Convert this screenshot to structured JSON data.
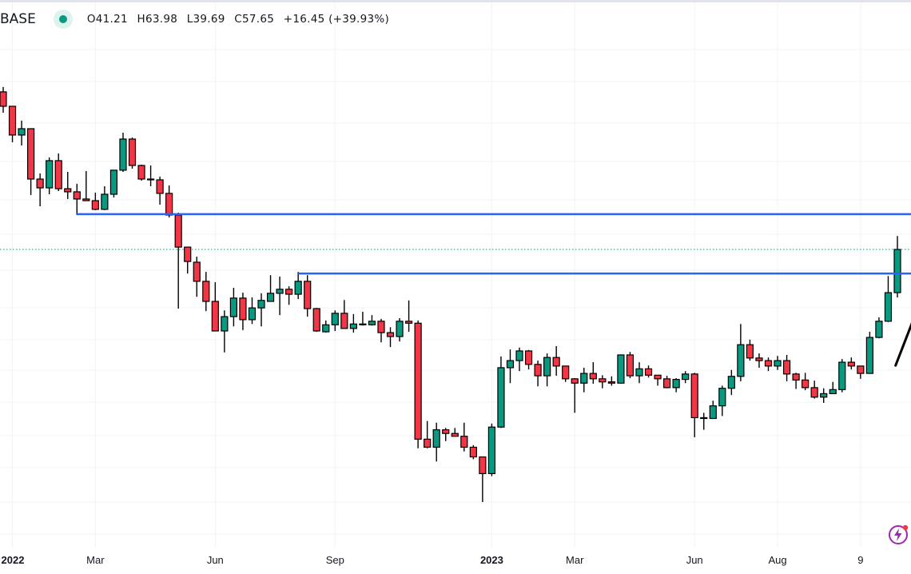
{
  "header": {
    "symbol": "BASE",
    "status_color": "#089981",
    "ohlc": {
      "open": "O41.21",
      "high": "H63.98",
      "low": "L39.69",
      "close": "C57.65",
      "change": "+16.45 (+39.93%)"
    }
  },
  "chart_data": {
    "type": "candlestick",
    "interval": "weekly",
    "scale": "log",
    "grid": true,
    "colors": {
      "up": "#089981",
      "down": "#F23645",
      "wick": "#000000",
      "horizontal_lines": "#2962FF",
      "last_price_line": "#089981"
    },
    "candles_ohlc": [
      [
        196.1,
        203.6,
        166.8,
        175.3
      ],
      [
        175.3,
        175.3,
        132.6,
        140.2
      ],
      [
        140.2,
        156.8,
        129.3,
        147.3
      ],
      [
        147.3,
        147.3,
        88.0,
        99.6
      ],
      [
        99.6,
        104.0,
        80.6,
        93.0
      ],
      [
        93.0,
        117.8,
        88.5,
        114.9
      ],
      [
        114.9,
        121.5,
        90.7,
        92.4
      ],
      [
        92.4,
        105.3,
        85.3,
        90.2
      ],
      [
        90.2,
        96.0,
        75.3,
        85.3
      ],
      [
        85.3,
        106.0,
        84.2,
        84.2
      ],
      [
        84.2,
        89.6,
        78.2,
        78.7
      ],
      [
        78.7,
        94.2,
        78.2,
        88.5
      ],
      [
        88.5,
        106.7,
        86.3,
        106.7
      ],
      [
        106.7,
        142.8,
        105.3,
        135.9
      ],
      [
        135.9,
        137.6,
        108.0,
        110.7
      ],
      [
        110.7,
        111.4,
        98.4,
        99.6
      ],
      [
        99.6,
        110.7,
        94.2,
        99.0
      ],
      [
        99.0,
        101.5,
        81.6,
        89.1
      ],
      [
        89.1,
        94.8,
        73.9,
        75.3
      ],
      [
        75.3,
        76.7,
        36.4,
        58.7
      ],
      [
        58.7,
        58.7,
        47.8,
        52.5
      ],
      [
        52.2,
        54.5,
        39.9,
        45.0
      ],
      [
        45.0,
        48.4,
        35.7,
        38.5
      ],
      [
        38.5,
        44.7,
        30.6,
        30.6
      ],
      [
        30.6,
        35.9,
        25.9,
        34.2
      ],
      [
        34.2,
        42.8,
        31.7,
        39.5
      ],
      [
        39.5,
        41.2,
        30.8,
        33.4
      ],
      [
        33.4,
        39.7,
        32.3,
        36.6
      ],
      [
        36.6,
        41.0,
        31.7,
        38.8
      ],
      [
        38.5,
        47.2,
        38.5,
        41.0
      ],
      [
        41.0,
        46.7,
        34.6,
        42.3
      ],
      [
        42.3,
        43.3,
        37.5,
        40.7
      ],
      [
        40.7,
        48.4,
        39.2,
        45.0
      ],
      [
        45.0,
        47.2,
        34.2,
        36.4
      ],
      [
        36.4,
        36.6,
        30.4,
        30.6
      ],
      [
        30.4,
        33.2,
        30.2,
        32.1
      ],
      [
        32.1,
        35.9,
        30.6,
        35.1
      ],
      [
        35.1,
        38.9,
        31.2,
        31.2
      ],
      [
        31.2,
        34.9,
        30.2,
        32.3
      ],
      [
        32.1,
        35.5,
        31.9,
        32.3
      ],
      [
        32.1,
        34.6,
        31.9,
        33.0
      ],
      [
        33.0,
        33.6,
        28.0,
        30.2
      ],
      [
        30.2,
        31.5,
        27.0,
        29.3
      ],
      [
        29.3,
        33.8,
        28.2,
        33.0
      ],
      [
        33.0,
        38.8,
        30.4,
        32.5
      ],
      [
        32.5,
        33.2,
        12.3,
        13.2
      ],
      [
        13.2,
        15.2,
        12.3,
        12.4
      ],
      [
        12.4,
        15.0,
        11.1,
        14.2
      ],
      [
        14.2,
        14.4,
        13.0,
        13.8
      ],
      [
        13.8,
        14.4,
        13.5,
        13.5
      ],
      [
        13.5,
        15.0,
        12.0,
        12.4
      ],
      [
        12.4,
        12.6,
        11.3,
        11.5
      ],
      [
        11.5,
        11.5,
        8.1,
        10.1
      ],
      [
        10.1,
        14.9,
        9.9,
        14.5
      ],
      [
        14.5,
        25.1,
        14.4,
        23.0
      ],
      [
        23.0,
        26.5,
        20.4,
        24.3
      ],
      [
        24.3,
        26.9,
        22.4,
        26.2
      ],
      [
        26.2,
        26.4,
        22.7,
        23.6
      ],
      [
        23.6,
        24.3,
        19.9,
        21.6
      ],
      [
        21.6,
        25.7,
        19.9,
        24.9
      ],
      [
        24.9,
        27.2,
        21.6,
        23.3
      ],
      [
        23.3,
        23.3,
        20.6,
        21.1
      ],
      [
        21.1,
        21.2,
        16.2,
        20.4
      ],
      [
        20.4,
        23.0,
        19.0,
        22.0
      ],
      [
        22.0,
        24.0,
        20.3,
        21.1
      ],
      [
        21.1,
        21.7,
        19.6,
        20.6
      ],
      [
        20.6,
        21.5,
        20.0,
        20.4
      ],
      [
        20.4,
        25.5,
        20.3,
        25.4
      ],
      [
        25.4,
        26.0,
        21.2,
        21.6
      ],
      [
        21.6,
        24.0,
        20.4,
        22.8
      ],
      [
        22.8,
        23.4,
        21.3,
        21.7
      ],
      [
        21.7,
        21.7,
        20.0,
        21.1
      ],
      [
        21.1,
        21.6,
        19.6,
        19.7
      ],
      [
        19.7,
        21.2,
        19.0,
        21.0
      ],
      [
        21.0,
        22.4,
        20.4,
        21.9
      ],
      [
        21.9,
        22.1,
        13.4,
        15.6
      ],
      [
        15.6,
        16.2,
        14.2,
        15.5
      ],
      [
        15.5,
        17.8,
        15.5,
        17.1
      ],
      [
        17.1,
        20.0,
        15.8,
        19.6
      ],
      [
        19.6,
        22.6,
        18.6,
        21.5
      ],
      [
        21.5,
        32.3,
        20.7,
        27.5
      ],
      [
        27.5,
        28.6,
        24.3,
        24.8
      ],
      [
        24.8,
        25.7,
        23.0,
        24.3
      ],
      [
        24.3,
        24.9,
        22.4,
        23.3
      ],
      [
        23.3,
        25.2,
        22.6,
        24.3
      ],
      [
        24.3,
        25.4,
        20.7,
        21.9
      ],
      [
        21.9,
        22.1,
        19.5,
        20.9
      ],
      [
        20.9,
        22.1,
        19.3,
        19.7
      ],
      [
        19.7,
        20.8,
        18.1,
        18.3
      ],
      [
        18.3,
        19.6,
        17.5,
        18.8
      ],
      [
        18.8,
        20.6,
        18.8,
        19.4
      ],
      [
        19.4,
        24.6,
        19.0,
        24.0
      ],
      [
        24.0,
        24.9,
        22.7,
        23.3
      ],
      [
        23.3,
        23.3,
        21.1,
        22.0
      ],
      [
        22.0,
        30.4,
        22.0,
        29.1
      ],
      [
        29.1,
        34.0,
        28.9,
        33.0
      ],
      [
        33.0,
        46.9,
        32.8,
        41.2
      ],
      [
        41.21,
        63.98,
        39.69,
        57.65
      ]
    ],
    "x_tick_labels": [
      {
        "label": "2022",
        "bar": 1,
        "bold": true
      },
      {
        "label": "Mar",
        "bar": 10,
        "bold": false
      },
      {
        "label": "Jun",
        "bar": 23,
        "bold": false
      },
      {
        "label": "Sep",
        "bar": 36,
        "bold": false
      },
      {
        "label": "2023",
        "bar": 53,
        "bold": true
      },
      {
        "label": "Mar",
        "bar": 62,
        "bold": false
      },
      {
        "label": "Jun",
        "bar": 75,
        "bold": false
      },
      {
        "label": "Aug",
        "bar": 84,
        "bold": false
      },
      {
        "label": "9",
        "bar": 93,
        "bold": false
      }
    ],
    "horizontal_lines": [
      {
        "price": 75.8,
        "from_bar": 8
      },
      {
        "price": 47.8,
        "from_bar": 32
      }
    ],
    "last_price": 57.65,
    "trend_line": {
      "from": {
        "bar": 96.8,
        "price": 23.4
      },
      "to": {
        "bar": 99.4,
        "price": 37.8
      }
    }
  },
  "icons": {
    "status": "market-open-dot-icon",
    "bottom_right": "lightning-bolt-icon"
  }
}
